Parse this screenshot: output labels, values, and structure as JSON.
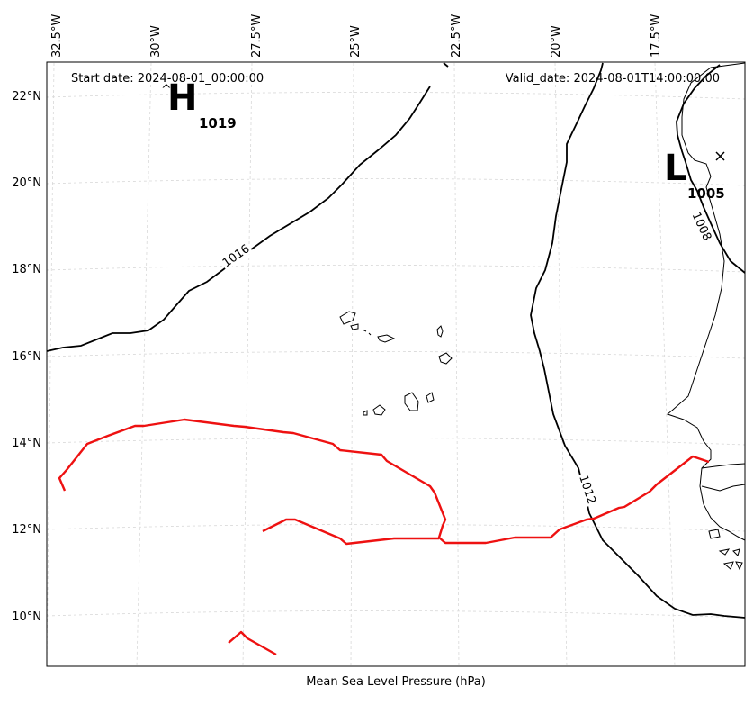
{
  "header": {
    "start_date": "Start date: 2024-08-01_00:00:00",
    "valid_date": "Valid_date: 2024-08-01T14:00:00.00"
  },
  "caption": "Mean Sea Level Pressure (hPa)",
  "axes": {
    "lon_labels": [
      "32.5°W",
      "30°W",
      "27.5°W",
      "25°W",
      "22.5°W",
      "20°W",
      "17.5°W"
    ],
    "lat_labels": [
      "22°N",
      "20°N",
      "18°N",
      "16°N",
      "14°N",
      "12°N",
      "10°N"
    ]
  },
  "pressure_centers": {
    "high": {
      "symbol": "H",
      "value": "1019"
    },
    "low": {
      "symbol": "L",
      "value": "1005"
    }
  },
  "isobar_labels": [
    "1016",
    "1012",
    "1008"
  ],
  "colors": {
    "isobar": "#000000",
    "track": "#ee1111",
    "grid": "#cccccc"
  }
}
